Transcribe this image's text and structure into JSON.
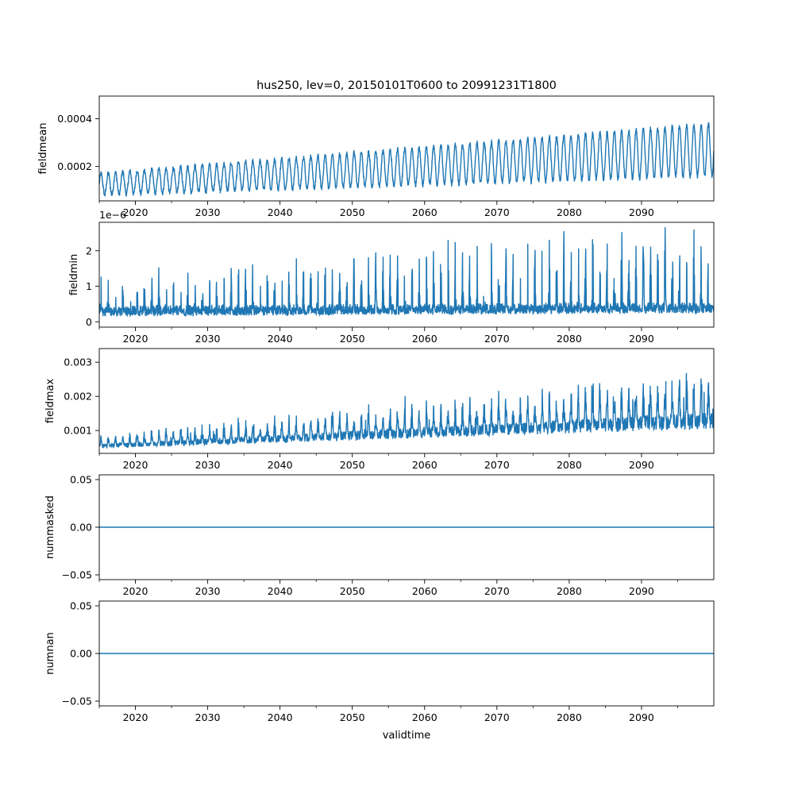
{
  "title": "hus250, lev=0, 20150101T0600 to 20991231T1800",
  "chart_data": {
    "type": "line",
    "title": "hus250, lev=0, 20150101T0600 to 20991231T1800",
    "xlabel": "validtime",
    "xlim": [
      2015.0,
      2100.0
    ],
    "x_ticks": [
      2020,
      2030,
      2040,
      2050,
      2060,
      2070,
      2080,
      2090
    ],
    "x_tick_labels": [
      "2020",
      "2030",
      "2040",
      "2050",
      "2060",
      "2070",
      "2080",
      "2090"
    ],
    "series_color": "#1f77b4",
    "panels": [
      {
        "key": "fieldmean",
        "ylabel": "fieldmean",
        "ylim": [
          5.55e-05,
          0.0004954
        ],
        "yticks": [
          0.0002,
          0.0004
        ],
        "ytick_labels": [
          "0.0002",
          "0.0004"
        ],
        "offset_text": "",
        "shape": {
          "type": "oscillating",
          "baseline_start": 0.000125,
          "baseline_end": 0.00027,
          "amp_start": 4.5e-05,
          "amp_end": 0.00011,
          "cycles_per_year": 1,
          "noise": 1e-05
        }
      },
      {
        "key": "fieldmin",
        "ylabel": "fieldmin",
        "ylim": [
          -1.5e-07,
          2.8e-06
        ],
        "yticks": [
          0,
          1e-06,
          2e-06
        ],
        "ytick_labels": [
          "0",
          "1",
          "2"
        ],
        "offset_text": "1e−6",
        "shape": {
          "type": "spiky",
          "baseline_start": 3e-07,
          "baseline_end": 4e-07,
          "amp_start": 8e-07,
          "amp_end": 2.2e-06,
          "cycles_per_year": 1,
          "noise": 2e-07
        }
      },
      {
        "key": "fieldmax",
        "ylabel": "fieldmax",
        "ylim": [
          0.00033,
          0.0034
        ],
        "yticks": [
          0.001,
          0.002,
          0.003
        ],
        "ytick_labels": [
          "0.001",
          "0.002",
          "0.003"
        ],
        "offset_text": "",
        "shape": {
          "type": "spiky-band",
          "baseline_start": 0.00048,
          "baseline_end": 0.00105,
          "amp_start": 0.00025,
          "amp_end": 0.0012,
          "cycles_per_year": 1,
          "noise": 0.00012
        }
      },
      {
        "key": "nummasked",
        "ylabel": "nummasked",
        "ylim": [
          -0.055,
          0.055
        ],
        "yticks": [
          -0.05,
          0.0,
          0.05
        ],
        "ytick_labels": [
          "−0.05",
          "0.00",
          "0.05"
        ],
        "offset_text": "",
        "shape": {
          "type": "constant",
          "value": 0.0
        }
      },
      {
        "key": "numnan",
        "ylabel": "numnan",
        "ylim": [
          -0.055,
          0.055
        ],
        "yticks": [
          -0.05,
          0.0,
          0.05
        ],
        "ytick_labels": [
          "−0.05",
          "0.00",
          "0.05"
        ],
        "offset_text": "",
        "shape": {
          "type": "constant",
          "value": 0.0
        }
      }
    ]
  }
}
